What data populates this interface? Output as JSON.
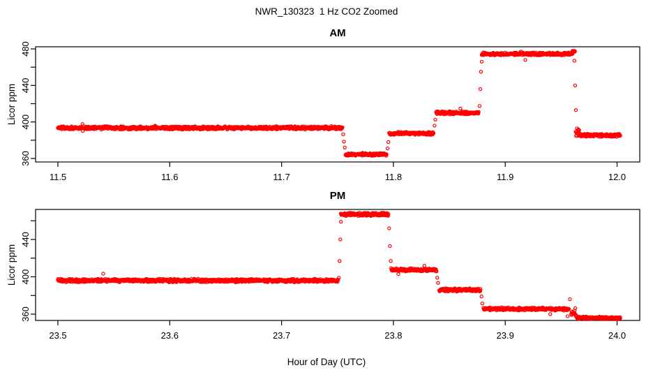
{
  "figure": {
    "title": "NWR_130323  1 Hz CO2 Zoomed",
    "xlabel": "Hour of Day (UTC)",
    "background": "#ffffff",
    "axis_color": "#000000",
    "point_color": "#ff0000"
  },
  "chart_data": [
    {
      "type": "scatter",
      "title": "AM",
      "ylabel": "Licor ppm",
      "marker": "open-circle",
      "color": "#ff0000",
      "xlim": [
        11.5,
        12.0
      ],
      "ylim": [
        356,
        482
      ],
      "grid": false,
      "x_ticks": [
        {
          "v": 11.5,
          "label": "11.5"
        },
        {
          "v": 11.6,
          "label": "11.6"
        },
        {
          "v": 11.7,
          "label": "11.7"
        },
        {
          "v": 11.8,
          "label": "11.8"
        },
        {
          "v": 11.9,
          "label": "11.9"
        },
        {
          "v": 12.0,
          "label": "12.0"
        }
      ],
      "y_ticks": [
        {
          "v": 360,
          "label": "360"
        },
        {
          "v": 380,
          "label": ""
        },
        {
          "v": 400,
          "label": "400"
        },
        {
          "v": 420,
          "label": ""
        },
        {
          "v": 440,
          "label": "440"
        },
        {
          "v": 460,
          "label": ""
        },
        {
          "v": 480,
          "label": "480"
        }
      ],
      "segments": [
        {
          "t0": 11.5,
          "t1": 11.7545,
          "v": 393.5,
          "n": 2.0
        },
        {
          "t0": 11.7572,
          "t1": 11.794,
          "v": 364.5,
          "n": 1.8
        },
        {
          "t0": 11.7962,
          "t1": 11.836,
          "v": 387.5,
          "n": 1.8
        },
        {
          "t0": 11.8382,
          "t1": 11.8762,
          "v": 410.0,
          "n": 1.8
        },
        {
          "t0": 11.879,
          "t1": 11.96,
          "v": 474.5,
          "n": 1.9
        },
        {
          "t0": 11.9598,
          "t1": 11.9622,
          "v": 477.0,
          "n": 1.5
        },
        {
          "t0": 11.963,
          "t1": 11.966,
          "v": 388.0,
          "n": 6.5
        },
        {
          "t0": 11.9662,
          "t1": 12.003,
          "v": 385.5,
          "n": 1.8
        }
      ],
      "transition_points": [
        [
          11.7551,
          386.5
        ],
        [
          11.7558,
          378.5
        ],
        [
          11.7565,
          372.0
        ],
        [
          11.7948,
          371.0
        ],
        [
          11.7955,
          378.0
        ],
        [
          11.8368,
          396.0
        ],
        [
          11.8375,
          402.5
        ],
        [
          11.877,
          417.5
        ],
        [
          11.8777,
          436.0
        ],
        [
          11.8783,
          455.0
        ],
        [
          11.879,
          466.0
        ],
        [
          11.9618,
          467.0
        ],
        [
          11.9625,
          440.0
        ],
        [
          11.9632,
          413.0
        ]
      ]
    },
    {
      "type": "scatter",
      "title": "PM",
      "ylabel": "Licor ppm",
      "marker": "open-circle",
      "color": "#ff0000",
      "xlim": [
        23.5,
        24.0
      ],
      "ylim": [
        354,
        472
      ],
      "grid": false,
      "x_ticks": [
        {
          "v": 23.5,
          "label": "23.5"
        },
        {
          "v": 23.6,
          "label": "23.6"
        },
        {
          "v": 23.7,
          "label": "23.7"
        },
        {
          "v": 23.8,
          "label": "23.8"
        },
        {
          "v": 23.9,
          "label": "23.9"
        },
        {
          "v": 24.0,
          "label": "24.0"
        }
      ],
      "y_ticks": [
        {
          "v": 360,
          "label": "360"
        },
        {
          "v": 380,
          "label": ""
        },
        {
          "v": 400,
          "label": "400"
        },
        {
          "v": 420,
          "label": ""
        },
        {
          "v": 440,
          "label": "440"
        },
        {
          "v": 460,
          "label": ""
        }
      ],
      "segments": [
        {
          "t0": 23.5,
          "t1": 23.7505,
          "v": 396.0,
          "n": 2.0
        },
        {
          "t0": 23.753,
          "t1": 23.7955,
          "v": 467.0,
          "n": 1.9
        },
        {
          "t0": 23.798,
          "t1": 23.8385,
          "v": 407.5,
          "n": 1.9
        },
        {
          "t0": 23.841,
          "t1": 23.878,
          "v": 386.0,
          "n": 1.9
        },
        {
          "t0": 23.8805,
          "t1": 23.957,
          "v": 365.5,
          "n": 1.9
        },
        {
          "t0": 23.959,
          "t1": 23.9635,
          "v": 361.5,
          "n": 5.5
        },
        {
          "t0": 23.964,
          "t1": 24.003,
          "v": 356.0,
          "n": 1.7
        }
      ],
      "transition_points": [
        [
          23.7512,
          399.0
        ],
        [
          23.7519,
          417.0
        ],
        [
          23.7525,
          440.0
        ],
        [
          23.7531,
          459.0
        ],
        [
          23.7962,
          452.0
        ],
        [
          23.7969,
          433.0
        ],
        [
          23.7976,
          417.0
        ],
        [
          23.8392,
          399.0
        ],
        [
          23.8399,
          393.5
        ],
        [
          23.8788,
          379.0
        ],
        [
          23.8795,
          371.5
        ],
        [
          23.9578,
          376.0
        ]
      ]
    }
  ]
}
